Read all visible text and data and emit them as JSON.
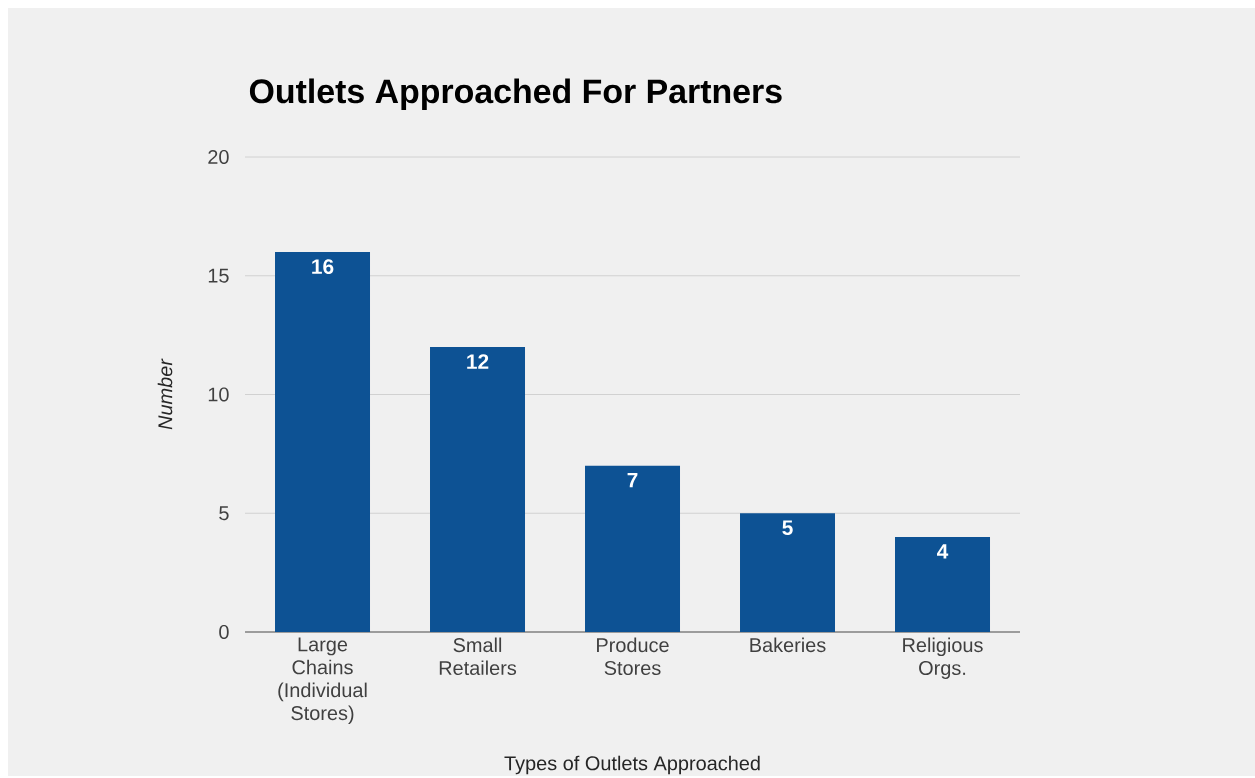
{
  "chart_data": {
    "type": "bar",
    "title": "Outlets Approached For Partners",
    "xlabel": "Types of Outlets Approached",
    "ylabel": "Number",
    "categories": [
      "Large Chains (Individual Stores)",
      "Small Retailers",
      "Produce Stores",
      "Bakeries",
      "Religious Orgs."
    ],
    "values": [
      16,
      12,
      7,
      5,
      4
    ],
    "color": "#0d5294",
    "ylim": [
      0,
      20
    ],
    "yticks": [
      0,
      5,
      10,
      15,
      20
    ],
    "grid": "y",
    "data_labels": true
  }
}
